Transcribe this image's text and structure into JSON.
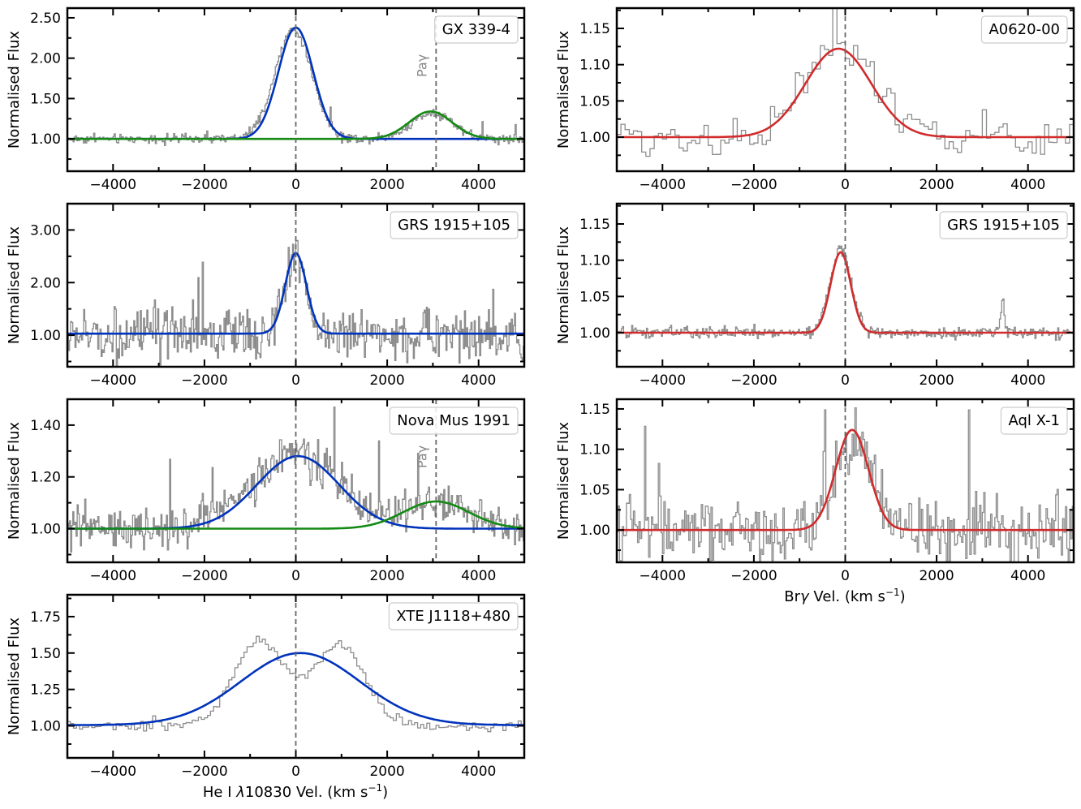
{
  "figure": {
    "common_ylabel": "Normalised Flux",
    "left_xlabel_main": "He I ",
    "left_xlabel_lambda": "λ",
    "left_xlabel_rest": "10830 Vel. (km s",
    "right_xlabel_main": "Br",
    "right_xlabel_gamma": "γ",
    "right_xlabel_rest": " Vel. (km s",
    "xlabel_exponent": "−1",
    "xlabel_close": ")",
    "pa_gamma_label": "Paγ",
    "colors": {
      "data_line": "#8c8c8c",
      "hei_fit": "#0033bb",
      "pa_fit": "#138a13",
      "bry_fit": "#d12b2b",
      "zero_marker": "#666666",
      "legend_border": "#cccccc"
    }
  },
  "chart_data": [
    {
      "id": "gx339",
      "type": "line",
      "title": "GX 339-4",
      "line": "He I λ10830",
      "xlim": [
        -5000,
        5000
      ],
      "ylim": [
        0.6,
        2.62
      ],
      "xticks": [
        -4000,
        -2000,
        0,
        2000,
        4000
      ],
      "xtick_labels": [
        "−4000",
        "−2000",
        "0",
        "2000",
        "4000"
      ],
      "yticks": [
        1.0,
        1.5,
        2.0,
        2.5
      ],
      "ytick_labels": [
        "1.00",
        "1.50",
        "2.00",
        "2.50"
      ],
      "noise_amplitude": 0.035,
      "steps": 400,
      "observed_bumps": [
        {
          "center": -50,
          "amplitude": 1.35,
          "sigma": 400
        },
        {
          "center": 3000,
          "amplitude": 0.33,
          "sigma": 450
        }
      ],
      "series": [
        {
          "name": "He I fit",
          "color_key": "hei_fit",
          "baseline": 1.0,
          "amplitude": 1.38,
          "center": 0,
          "sigma": 380
        },
        {
          "name": "Paγ fit",
          "color_key": "pa_fit",
          "baseline": 1.0,
          "amplitude": 0.34,
          "center": 2950,
          "sigma": 470
        }
      ],
      "markers": [
        {
          "x": 0,
          "label": ""
        },
        {
          "x": 3070,
          "label": "Paγ"
        }
      ]
    },
    {
      "id": "a0620",
      "type": "line",
      "title": "A0620-00",
      "line": "Brγ",
      "xlim": [
        -5000,
        5000
      ],
      "ylim": [
        0.953,
        1.178
      ],
      "xticks": [
        -4000,
        -2000,
        0,
        2000,
        4000
      ],
      "xtick_labels": [
        "−4000",
        "−2000",
        "0",
        "2000",
        "4000"
      ],
      "yticks": [
        1.0,
        1.05,
        1.1,
        1.15
      ],
      "ytick_labels": [
        "1.00",
        "1.05",
        "1.10",
        "1.15"
      ],
      "noise_amplitude": 0.018,
      "steps": 110,
      "observed_bumps": [
        {
          "center": -150,
          "amplitude": 0.125,
          "sigma": 750
        }
      ],
      "series": [
        {
          "name": "Brγ fit",
          "color_key": "bry_fit",
          "baseline": 1.0,
          "amplitude": 0.122,
          "center": -150,
          "sigma": 720
        }
      ],
      "markers": [
        {
          "x": 0,
          "label": ""
        }
      ]
    },
    {
      "id": "grs1915_he",
      "type": "line",
      "title": "GRS 1915+105",
      "line": "He I λ10830",
      "xlim": [
        -5000,
        5000
      ],
      "ylim": [
        0.4,
        3.5
      ],
      "xticks": [
        -4000,
        -2000,
        0,
        2000,
        4000
      ],
      "xtick_labels": [
        "−4000",
        "−2000",
        "0",
        "2000",
        "4000"
      ],
      "yticks": [
        1.0,
        2.0,
        3.0
      ],
      "ytick_labels": [
        "1.00",
        "2.00",
        "3.00"
      ],
      "noise_amplitude": 0.3,
      "steps": 420,
      "observed_bumps": [
        {
          "center": 0,
          "amplitude": 1.55,
          "sigma": 230
        }
      ],
      "series": [
        {
          "name": "He I fit",
          "color_key": "hei_fit",
          "baseline": 1.03,
          "amplitude": 1.53,
          "center": 0,
          "sigma": 230
        }
      ],
      "markers": [
        {
          "x": 0,
          "label": ""
        }
      ]
    },
    {
      "id": "grs1915_br",
      "type": "line",
      "title": "GRS 1915+105",
      "line": "Brγ",
      "xlim": [
        -5000,
        5000
      ],
      "ylim": [
        0.953,
        1.178
      ],
      "xticks": [
        -4000,
        -2000,
        0,
        2000,
        4000
      ],
      "xtick_labels": [
        "−4000",
        "−2000",
        "0",
        "2000",
        "4000"
      ],
      "yticks": [
        1.0,
        1.05,
        1.1,
        1.15
      ],
      "ytick_labels": [
        "1.00",
        "1.05",
        "1.10",
        "1.15"
      ],
      "noise_amplitude": 0.005,
      "steps": 400,
      "observed_bumps": [
        {
          "center": -100,
          "amplitude": 0.115,
          "sigma": 230
        },
        {
          "center": 3450,
          "amplitude": 0.05,
          "sigma": 40
        }
      ],
      "series": [
        {
          "name": "Brγ fit",
          "color_key": "bry_fit",
          "baseline": 1.0,
          "amplitude": 0.111,
          "center": -100,
          "sigma": 220
        }
      ],
      "markers": [
        {
          "x": 0,
          "label": ""
        }
      ]
    },
    {
      "id": "novamus",
      "type": "line",
      "title": "Nova Mus 1991",
      "line": "He I λ10830",
      "xlim": [
        -5000,
        5000
      ],
      "ylim": [
        0.87,
        1.5
      ],
      "xticks": [
        -4000,
        -2000,
        0,
        2000,
        4000
      ],
      "xtick_labels": [
        "−4000",
        "−2000",
        "0",
        "2000",
        "4000"
      ],
      "yticks": [
        1.0,
        1.2,
        1.4
      ],
      "ytick_labels": [
        "1.00",
        "1.20",
        "1.40"
      ],
      "noise_amplitude": 0.05,
      "steps": 420,
      "observed_bumps": [
        {
          "center": 0,
          "amplitude": 0.29,
          "sigma": 950
        },
        {
          "center": 3100,
          "amplitude": 0.1,
          "sigma": 700
        }
      ],
      "series": [
        {
          "name": "He I fit",
          "color_key": "hei_fit",
          "baseline": 1.0,
          "amplitude": 0.28,
          "center": 50,
          "sigma": 900
        },
        {
          "name": "Paγ fit",
          "color_key": "pa_fit",
          "baseline": 1.0,
          "amplitude": 0.105,
          "center": 3070,
          "sigma": 720
        }
      ],
      "markers": [
        {
          "x": 0,
          "label": ""
        },
        {
          "x": 3070,
          "label": "Paγ"
        }
      ]
    },
    {
      "id": "aqlx1",
      "type": "line",
      "title": "Aql X-1",
      "line": "Brγ",
      "xlim": [
        -5000,
        5000
      ],
      "ylim": [
        0.96,
        1.162
      ],
      "xticks": [
        -4000,
        -2000,
        0,
        2000,
        4000
      ],
      "xtick_labels": [
        "−4000",
        "−2000",
        "0",
        "2000",
        "4000"
      ],
      "yticks": [
        1.0,
        1.05,
        1.1,
        1.15
      ],
      "ytick_labels": [
        "1.00",
        "1.05",
        "1.10",
        "1.15"
      ],
      "noise_amplitude": 0.026,
      "steps": 330,
      "observed_bumps": [
        {
          "center": 150,
          "amplitude": 0.12,
          "sigma": 380
        }
      ],
      "series": [
        {
          "name": "Brγ fit",
          "color_key": "bry_fit",
          "baseline": 1.0,
          "amplitude": 0.124,
          "center": 150,
          "sigma": 360
        }
      ],
      "markers": [
        {
          "x": 0,
          "label": ""
        }
      ]
    },
    {
      "id": "xtej1118",
      "type": "line",
      "title": "XTE J1118+480",
      "line": "He I λ10830",
      "xlim": [
        -5000,
        5000
      ],
      "ylim": [
        0.78,
        1.9
      ],
      "xticks": [
        -4000,
        -2000,
        0,
        2000,
        4000
      ],
      "xtick_labels": [
        "−4000",
        "−2000",
        "0",
        "2000",
        "4000"
      ],
      "yticks": [
        1.0,
        1.25,
        1.5,
        1.75
      ],
      "ytick_labels": [
        "1.00",
        "1.25",
        "1.50",
        "1.75"
      ],
      "noise_amplitude": 0.02,
      "steps": 150,
      "observed_bumps": [
        {
          "center": -800,
          "amplitude": 0.58,
          "sigma": 560
        },
        {
          "center": 950,
          "amplitude": 0.56,
          "sigma": 560
        }
      ],
      "series": [
        {
          "name": "He I fit",
          "color_key": "hei_fit",
          "baseline": 1.005,
          "amplitude": 0.495,
          "center": 100,
          "sigma": 1300
        }
      ],
      "markers": [
        {
          "x": 0,
          "label": ""
        }
      ]
    }
  ]
}
